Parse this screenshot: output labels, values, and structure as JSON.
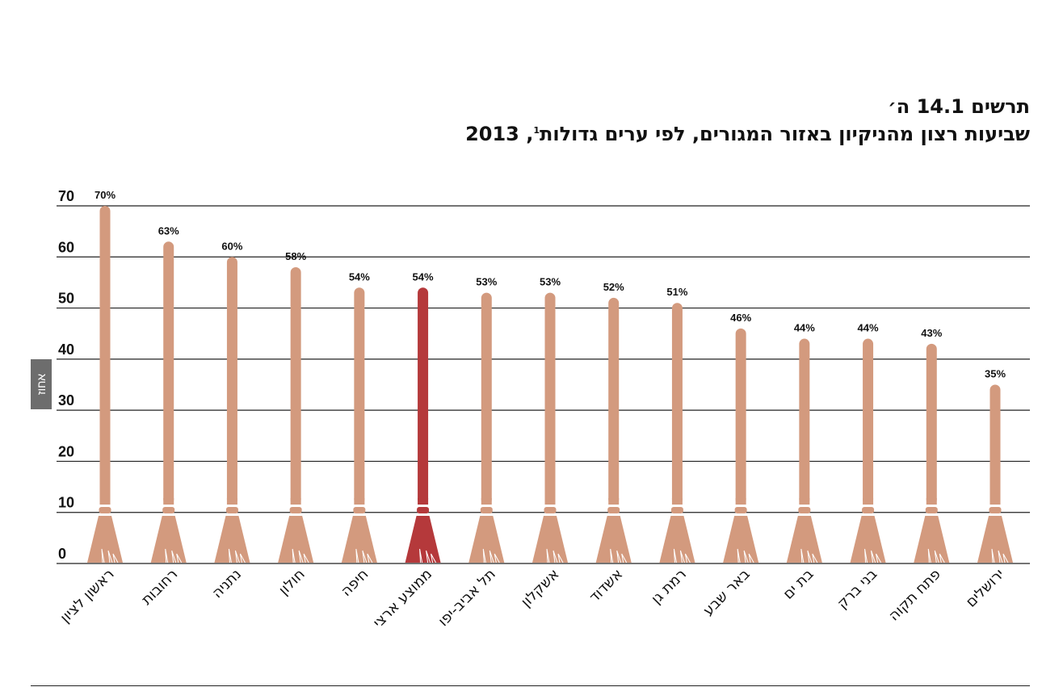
{
  "header": {
    "figure_number": "תרשים 14.1 ה׳",
    "title": "שביעות רצון מהניקיון באזור המגורים, לפי ערים גדולות",
    "footnote_mark": "1",
    "year": ", 2013"
  },
  "chart_data": {
    "type": "bar",
    "ylabel": "אחוז",
    "ylim": [
      0,
      70
    ],
    "yticks": [
      0,
      10,
      20,
      30,
      40,
      50,
      60,
      70
    ],
    "grid": true,
    "categories": [
      "ראשון לציון",
      "רחובות",
      "נתניה",
      "חולון",
      "חיפה",
      "ממוצע ארצי",
      "תל אביב-יפו",
      "אשקלון",
      "אשדוד",
      "רמת גן",
      "באר שבע",
      "בת ים",
      "בני ברק",
      "פתח תקוה",
      "ירושלים"
    ],
    "values": [
      70,
      63,
      60,
      58,
      54,
      54,
      53,
      53,
      52,
      51,
      46,
      44,
      44,
      43,
      35
    ],
    "value_labels": [
      "70%",
      "63%",
      "60%",
      "58%",
      "54%",
      "54%",
      "53%",
      "53%",
      "52%",
      "51%",
      "46%",
      "44%",
      "44%",
      "43%",
      "35%"
    ],
    "highlight_category": "ממוצע ארצי",
    "colors": {
      "bar": "#d39a7e",
      "highlight": "#b5393b",
      "grid": "#222222"
    }
  }
}
